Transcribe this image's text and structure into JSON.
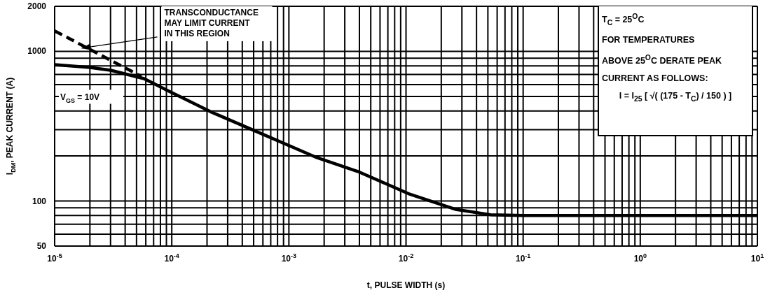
{
  "chart_data": {
    "type": "line",
    "xlabel": "t, PULSE WIDTH (s)",
    "ylabel": "I$_{DM}$, PEAK CURRENT (A)",
    "log": "xy",
    "grid": true,
    "marker": "none",
    "xlim": [
      1e-05,
      10
    ],
    "ylim": [
      50,
      2000
    ],
    "xticks": [
      {
        "value": 1e-05,
        "label": "10$^{-5}$"
      },
      {
        "value": 2e-05,
        "label": null
      },
      {
        "value": 3e-05,
        "label": null
      },
      {
        "value": 4e-05,
        "label": null
      },
      {
        "value": 5e-05,
        "label": null
      },
      {
        "value": 6e-05,
        "label": null
      },
      {
        "value": 7e-05,
        "label": null
      },
      {
        "value": 8e-05,
        "label": null
      },
      {
        "value": 9e-05,
        "label": null
      },
      {
        "value": 0.0001,
        "label": "10$^{-4}$"
      },
      {
        "value": 0.0002,
        "label": null
      },
      {
        "value": 0.0003,
        "label": null
      },
      {
        "value": 0.0004,
        "label": null
      },
      {
        "value": 0.0005,
        "label": null
      },
      {
        "value": 0.0006,
        "label": null
      },
      {
        "value": 0.0007,
        "label": null
      },
      {
        "value": 0.0008,
        "label": null
      },
      {
        "value": 0.0009,
        "label": null
      },
      {
        "value": 0.001,
        "label": "10$^{-3}$"
      },
      {
        "value": 0.002,
        "label": null
      },
      {
        "value": 0.003,
        "label": null
      },
      {
        "value": 0.004,
        "label": null
      },
      {
        "value": 0.005,
        "label": null
      },
      {
        "value": 0.006,
        "label": null
      },
      {
        "value": 0.007,
        "label": null
      },
      {
        "value": 0.008,
        "label": null
      },
      {
        "value": 0.009,
        "label": null
      },
      {
        "value": 0.01,
        "label": "10$^{-2}$"
      },
      {
        "value": 0.02,
        "label": null
      },
      {
        "value": 0.03,
        "label": null
      },
      {
        "value": 0.04,
        "label": null
      },
      {
        "value": 0.05,
        "label": null
      },
      {
        "value": 0.06,
        "label": null
      },
      {
        "value": 0.07,
        "label": null
      },
      {
        "value": 0.08,
        "label": null
      },
      {
        "value": 0.09,
        "label": null
      },
      {
        "value": 0.1,
        "label": "10$^{-1}$"
      },
      {
        "value": 0.2,
        "label": null
      },
      {
        "value": 0.3,
        "label": null
      },
      {
        "value": 0.4,
        "label": null
      },
      {
        "value": 0.5,
        "label": null
      },
      {
        "value": 0.6,
        "label": null
      },
      {
        "value": 0.7,
        "label": null
      },
      {
        "value": 0.8,
        "label": null
      },
      {
        "value": 0.9,
        "label": null
      },
      {
        "value": 1,
        "label": "10$^{0}$"
      },
      {
        "value": 2,
        "label": null
      },
      {
        "value": 3,
        "label": null
      },
      {
        "value": 4,
        "label": null
      },
      {
        "value": 5,
        "label": null
      },
      {
        "value": 6,
        "label": null
      },
      {
        "value": 7,
        "label": null
      },
      {
        "value": 8,
        "label": null
      },
      {
        "value": 9,
        "label": null
      },
      {
        "value": 10,
        "label": "10$^{1}$"
      }
    ],
    "yticks": [
      50,
      {
        "value": 60,
        "label": null
      },
      {
        "value": 70,
        "label": null
      },
      {
        "value": 80,
        "label": null
      },
      {
        "value": 90,
        "label": null
      },
      100,
      {
        "value": 200,
        "label": null
      },
      {
        "value": 300,
        "label": null
      },
      {
        "value": 400,
        "label": null
      },
      {
        "value": 500,
        "label": null
      },
      {
        "value": 600,
        "label": null
      },
      {
        "value": 700,
        "label": null
      },
      {
        "value": 800,
        "label": null
      },
      {
        "value": 900,
        "label": null
      },
      1000,
      2000
    ],
    "series": [
      {
        "name": "V$_{GS}$ = 10V",
        "color": "#000000",
        "line_style": "solid",
        "x": [
          1e-05,
          2e-05,
          3e-05,
          5.8e-05,
          0.0001,
          0.000213,
          0.0005,
          0.00168,
          0.004,
          0.0105,
          0.0264,
          0.0525,
          0.1,
          1,
          10
        ],
        "values": [
          815,
          780,
          748,
          657,
          530,
          396,
          297,
          197,
          156,
          112,
          88,
          81,
          80,
          80,
          80
        ]
      },
      {
        "color": "#000000",
        "line_style": "dashed",
        "x": [
          1e-05,
          5.5e-05
        ],
        "values": [
          1370,
          680
        ]
      }
    ],
    "annotations": [
      {
        "text": "TRANSCONDUCTANCE\nMAY LIMIT CURRENT\nIN THIS REGION",
        "x": 1.7e-05,
        "y": 1050
      },
      "T$_{C}$ = 25$^{O}$C",
      "FOR TEMPERATURES",
      "ABOVE 25$^{O}$C DERATE PEAK",
      "CURRENT AS FOLLOWS:",
      "I = I$_{25}$ [ √( (175 - T$_{C}$) / 150 ) ]"
    ]
  }
}
